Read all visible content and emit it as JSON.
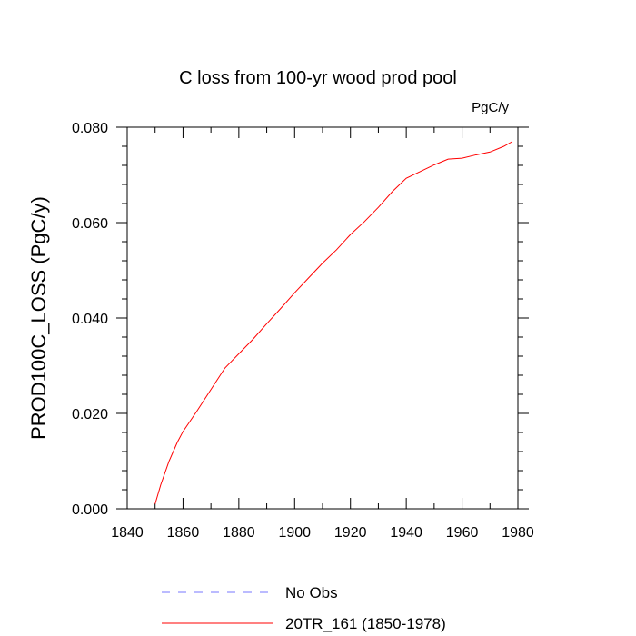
{
  "chart_data": {
    "type": "line",
    "title": "C loss from 100-yr wood prod pool",
    "units_label": "PgC/y",
    "xlabel": "",
    "ylabel": "PROD100C_LOSS  (PgC/y)",
    "xlim": [
      1840,
      1980
    ],
    "ylim": [
      0.0,
      0.08
    ],
    "x_ticks": [
      1840,
      1860,
      1880,
      1900,
      1920,
      1940,
      1960,
      1980
    ],
    "x_tick_labels": [
      "1840",
      "1860",
      "1880",
      "1900",
      "1920",
      "1940",
      "1960",
      "1980"
    ],
    "y_ticks": [
      0.0,
      0.02,
      0.04,
      0.06,
      0.08
    ],
    "y_tick_labels": [
      "0.000",
      "0.020",
      "0.040",
      "0.060",
      "0.080"
    ],
    "grid": false,
    "legend_position": "bottom",
    "series": [
      {
        "name": "No Obs",
        "color": "#7777ff",
        "style": "dashed",
        "x": [],
        "y": []
      },
      {
        "name": "20TR_161 (1850-1978)",
        "color": "#ff0000",
        "style": "solid",
        "x": [
          1850,
          1852,
          1855,
          1858,
          1860,
          1865,
          1870,
          1875,
          1880,
          1885,
          1890,
          1895,
          1900,
          1905,
          1910,
          1915,
          1920,
          1925,
          1930,
          1935,
          1940,
          1945,
          1950,
          1955,
          1960,
          1965,
          1970,
          1975,
          1978
        ],
        "y": [
          0.001,
          0.005,
          0.01,
          0.014,
          0.0162,
          0.0205,
          0.025,
          0.0295,
          0.0325,
          0.0355,
          0.0388,
          0.042,
          0.0453,
          0.0484,
          0.0515,
          0.0543,
          0.0575,
          0.0602,
          0.0632,
          0.0665,
          0.0693,
          0.0707,
          0.0721,
          0.0733,
          0.0735,
          0.0742,
          0.0748,
          0.076,
          0.077
        ]
      }
    ]
  }
}
